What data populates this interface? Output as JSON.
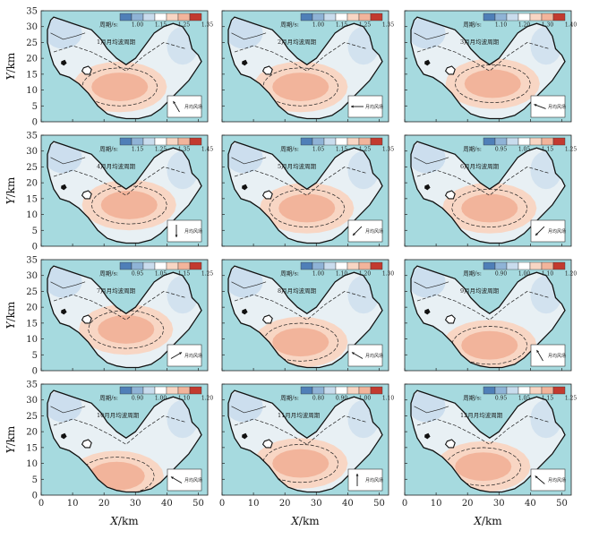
{
  "chart_data": {
    "type": "contour-map-grid",
    "rows": 4,
    "cols": 3,
    "x_axis": {
      "label_var": "X",
      "label_unit": "/km",
      "ticks": [
        "0",
        "10",
        "20",
        "30",
        "40",
        "50"
      ],
      "range": [
        0,
        53
      ]
    },
    "y_axis": {
      "label_var": "Y",
      "label_unit": "/km",
      "ticks": [
        "0",
        "5",
        "10",
        "15",
        "20",
        "25",
        "30",
        "35"
      ],
      "range": [
        0,
        35
      ]
    },
    "colorbar_label": "周期/s:",
    "wind_label": "月均风场",
    "colors": {
      "water": "#a6dadf",
      "land": "#e8f0f4",
      "blue_dark": "#4f7fb8",
      "blue_mid": "#8fb3d6",
      "blue_light": "#c9dced",
      "peach_light": "#f8d6c4",
      "peach": "#f2b49b",
      "red": "#c23a2f"
    },
    "panels": [
      {
        "title": "1月月均波周期",
        "ticks": [
          "1.00",
          "1.15",
          "1.25",
          "1.35"
        ],
        "wind_angle": 120,
        "center": [
          25,
          11
        ]
      },
      {
        "title": "2月月均波周期",
        "ticks": [
          "1.00",
          "1.15",
          "1.25",
          "1.35"
        ],
        "wind_angle": 180,
        "center": [
          25,
          11
        ]
      },
      {
        "title": "3月月均波周期",
        "ticks": [
          "1.10",
          "1.20",
          "1.30",
          "1.40"
        ],
        "wind_angle": 160,
        "center": [
          28,
          12
        ]
      },
      {
        "title": "4月月均波周期",
        "ticks": [
          "1.15",
          "1.25",
          "1.35",
          "1.45"
        ],
        "wind_angle": -90,
        "center": [
          28,
          13
        ]
      },
      {
        "title": "5月月均波周期",
        "ticks": [
          "1.05",
          "1.15",
          "1.25",
          "1.35"
        ],
        "wind_angle": -135,
        "center": [
          27,
          12
        ]
      },
      {
        "title": "6月月均波周期",
        "ticks": [
          "0.95",
          "1.05",
          "1.15",
          "1.25"
        ],
        "wind_angle": -135,
        "center": [
          27,
          12
        ]
      },
      {
        "title": "7月月均波周期",
        "ticks": [
          "0.95",
          "1.05",
          "1.15",
          "1.25"
        ],
        "wind_angle": 30,
        "center": [
          27,
          13
        ]
      },
      {
        "title": "8月月均波周期",
        "ticks": [
          "1.00",
          "1.10",
          "1.20",
          "1.30"
        ],
        "wind_angle": 150,
        "center": [
          25,
          9
        ]
      },
      {
        "title": "9月月均波周期",
        "ticks": [
          "0.90",
          "1.00",
          "1.10",
          "1.20"
        ],
        "wind_angle": 120,
        "center": [
          27,
          8
        ]
      },
      {
        "title": "10月月均波周期",
        "ticks": [
          "0.90",
          "1.00",
          "1.10",
          "1.20"
        ],
        "wind_angle": 150,
        "center": [
          24,
          6
        ]
      },
      {
        "title": "11月月均波周期",
        "ticks": [
          "0.80",
          "0.90",
          "1.00",
          "1.10"
        ],
        "wind_angle": 90,
        "center": [
          25,
          10
        ]
      },
      {
        "title": "12月月均波周期",
        "ticks": [
          "0.95",
          "1.05",
          "1.15",
          "1.25"
        ],
        "wind_angle": 140,
        "center": [
          25,
          9
        ]
      }
    ]
  }
}
